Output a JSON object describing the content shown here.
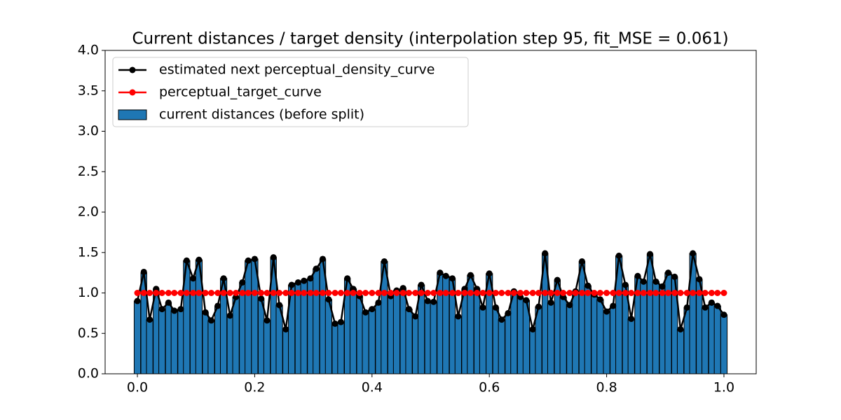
{
  "chart_data": {
    "type": "bar",
    "title": "Current distances / target density (interpolation step 95, fit_MSE = 0.061)",
    "x": [
      0,
      0.011,
      0.021,
      0.032,
      0.042,
      0.053,
      0.063,
      0.074,
      0.084,
      0.095,
      0.105,
      0.116,
      0.126,
      0.137,
      0.147,
      0.158,
      0.168,
      0.179,
      0.189,
      0.2,
      0.211,
      0.221,
      0.232,
      0.242,
      0.253,
      0.263,
      0.274,
      0.284,
      0.295,
      0.305,
      0.316,
      0.326,
      0.337,
      0.347,
      0.358,
      0.368,
      0.379,
      0.389,
      0.4,
      0.411,
      0.421,
      0.432,
      0.442,
      0.453,
      0.463,
      0.474,
      0.484,
      0.495,
      0.505,
      0.516,
      0.526,
      0.537,
      0.547,
      0.558,
      0.568,
      0.579,
      0.589,
      0.6,
      0.611,
      0.621,
      0.632,
      0.642,
      0.653,
      0.663,
      0.674,
      0.684,
      0.695,
      0.705,
      0.716,
      0.726,
      0.737,
      0.747,
      0.758,
      0.768,
      0.779,
      0.789,
      0.8,
      0.811,
      0.821,
      0.832,
      0.842,
      0.853,
      0.863,
      0.874,
      0.884,
      0.895,
      0.905,
      0.916,
      0.926,
      0.937,
      0.947,
      0.958,
      0.968,
      0.979,
      0.989,
      1.0
    ],
    "series": [
      {
        "name": "estimated next perceptual_density_curve",
        "type": "line",
        "color": "#000000",
        "values": [
          0.9,
          1.26,
          0.67,
          1.05,
          0.8,
          0.88,
          0.78,
          0.8,
          1.4,
          1.18,
          1.41,
          0.76,
          0.66,
          0.84,
          1.18,
          0.72,
          0.95,
          1.13,
          1.4,
          1.42,
          0.93,
          0.66,
          1.44,
          0.85,
          0.55,
          1.1,
          1.13,
          1.15,
          1.18,
          1.3,
          1.42,
          0.92,
          0.62,
          0.64,
          1.18,
          1.05,
          0.96,
          0.76,
          0.8,
          0.88,
          1.39,
          0.96,
          1.03,
          1.06,
          0.8,
          0.71,
          1.1,
          0.9,
          0.89,
          1.25,
          1.21,
          1.18,
          0.71,
          1.05,
          1.22,
          1.05,
          0.82,
          1.24,
          0.82,
          0.67,
          0.75,
          1.02,
          0.95,
          0.91,
          0.55,
          0.83,
          1.49,
          0.88,
          1.16,
          0.95,
          0.85,
          1.02,
          1.39,
          1.09,
          0.98,
          0.92,
          0.77,
          0.84,
          1.46,
          1.1,
          0.68,
          1.21,
          1.14,
          1.48,
          1.14,
          1.08,
          1.25,
          1.2,
          0.55,
          0.82,
          1.49,
          1.17,
          0.82,
          0.88,
          0.84,
          0.73
        ]
      },
      {
        "name": "perceptual_target_curve",
        "type": "line",
        "color": "#ff0000",
        "values": [
          1,
          1,
          1,
          1,
          1,
          1,
          1,
          1,
          1,
          1,
          1,
          1,
          1,
          1,
          1,
          1,
          1,
          1,
          1,
          1,
          1,
          1,
          1,
          1,
          1,
          1,
          1,
          1,
          1,
          1,
          1,
          1,
          1,
          1,
          1,
          1,
          1,
          1,
          1,
          1,
          1,
          1,
          1,
          1,
          1,
          1,
          1,
          1,
          1,
          1,
          1,
          1,
          1,
          1,
          1,
          1,
          1,
          1,
          1,
          1,
          1,
          1,
          1,
          1,
          1,
          1,
          1,
          1,
          1,
          1,
          1,
          1,
          1,
          1,
          1,
          1,
          1,
          1,
          1,
          1,
          1,
          1,
          1,
          1,
          1,
          1,
          1,
          1,
          1,
          1,
          1,
          1,
          1,
          1,
          1,
          1
        ]
      },
      {
        "name": "current distances (before split)",
        "type": "bar",
        "color": "#1f77b4",
        "values": [
          0.9,
          1.25,
          0.67,
          1.05,
          0.8,
          0.88,
          0.78,
          0.8,
          1.4,
          1.18,
          1.41,
          0.76,
          0.66,
          0.84,
          1.18,
          0.72,
          0.95,
          1.13,
          1.4,
          1.42,
          0.93,
          0.66,
          1.44,
          0.85,
          0.55,
          1.1,
          1.13,
          1.15,
          1.18,
          1.3,
          1.42,
          0.92,
          0.62,
          0.64,
          1.18,
          1.05,
          0.96,
          0.76,
          0.8,
          0.88,
          1.39,
          0.96,
          1.03,
          1.06,
          0.8,
          0.71,
          1.1,
          0.9,
          0.89,
          1.25,
          1.21,
          1.18,
          0.71,
          1.05,
          1.22,
          1.05,
          0.82,
          1.24,
          0.82,
          0.67,
          0.75,
          1.02,
          0.95,
          0.91,
          0.55,
          0.83,
          1.49,
          0.88,
          1.16,
          0.95,
          0.85,
          1.02,
          1.39,
          1.09,
          0.98,
          0.92,
          0.77,
          0.84,
          1.46,
          1.1,
          0.68,
          1.21,
          1.14,
          1.48,
          1.14,
          1.08,
          1.25,
          1.2,
          0.55,
          0.82,
          1.49,
          1.17,
          0.82,
          0.88,
          0.84,
          0.73
        ]
      }
    ],
    "xlim": [
      -0.055,
      1.055
    ],
    "ylim": [
      0,
      4
    ],
    "xticks": [
      {
        "value": 0,
        "label": "0.0"
      },
      0.2,
      0.4,
      0.6,
      0.8,
      {
        "value": 1,
        "label": "1.0"
      }
    ],
    "yticks": [
      {
        "value": 0,
        "label": "0.0"
      },
      0.5,
      {
        "value": 1,
        "label": "1.0"
      },
      1.5,
      {
        "value": 2,
        "label": "2.0"
      },
      2.5,
      {
        "value": 3,
        "label": "3.0"
      },
      3.5,
      {
        "value": 4,
        "label": "4.0"
      }
    ],
    "grid": false,
    "legend": "upper-left"
  }
}
